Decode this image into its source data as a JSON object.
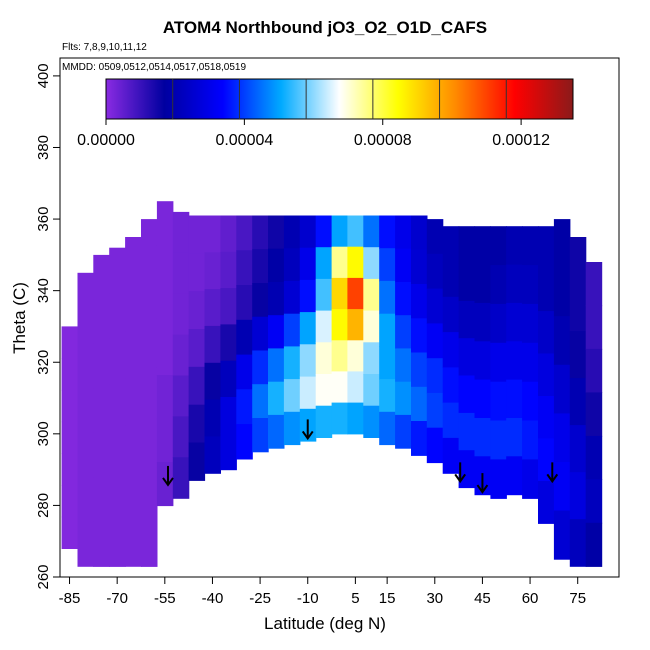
{
  "chart_data": {
    "type": "heatmap",
    "title": "ATOM4 Northbound jO3_O2_O1D_CAFS",
    "flights_note": "Flts: 7,8,9,10,11,12",
    "dates_note": "MMDD: 0509,0512,0514,0517,0518,0519",
    "xlabel": "Latitude (deg N)",
    "ylabel": "Theta (C)",
    "xlim": [
      -88,
      88
    ],
    "ylim": [
      260,
      405
    ],
    "x_ticks": [
      -85,
      -70,
      -55,
      -40,
      -25,
      -10,
      5,
      15,
      30,
      45,
      60,
      75
    ],
    "y_ticks": [
      260,
      280,
      300,
      320,
      340,
      360,
      380,
      400
    ],
    "colorbar": {
      "min": 0,
      "max": 0.000135,
      "tick_values": [
        0,
        4e-05,
        8e-05,
        0.00012
      ],
      "tick_labels": [
        "0.00000",
        "0.00004",
        "0.00008",
        "0.00012"
      ],
      "colors": [
        "#8a2be2",
        "#0000a0",
        "#0000ff",
        "#00aaff",
        "#ffffff",
        "#ffff00",
        "#ff8800",
        "#ff0000",
        "#8b1a1a"
      ]
    },
    "arrow_markers_lat": [
      -54,
      -10,
      38,
      45,
      67
    ],
    "arrow_marker_theta": [
      286,
      299,
      287,
      284,
      287
    ],
    "coverage": {
      "lat": [
        -85,
        -80,
        -75,
        -70,
        -65,
        -60,
        -55,
        -50,
        -45,
        -40,
        -35,
        -30,
        -25,
        -20,
        -15,
        -10,
        -5,
        0,
        5,
        10,
        15,
        20,
        25,
        30,
        35,
        40,
        45,
        50,
        55,
        60,
        65,
        70,
        75,
        80
      ],
      "theta_top": [
        330,
        345,
        350,
        352,
        355,
        360,
        365,
        362,
        361,
        361,
        361,
        361,
        361,
        361,
        361,
        361,
        361,
        361,
        361,
        361,
        361,
        361,
        361,
        360,
        358,
        358,
        358,
        358,
        358,
        358,
        358,
        360,
        355,
        348
      ],
      "theta_bottom": [
        268,
        263,
        263,
        263,
        263,
        263,
        280,
        282,
        287,
        289,
        290,
        293,
        295,
        296,
        297,
        298,
        299,
        300,
        300,
        299,
        297,
        296,
        294,
        292,
        289,
        285,
        283,
        282,
        283,
        282,
        275,
        265,
        263,
        263
      ]
    },
    "j_values": [
      [
        1e-06,
        2e-06,
        2e-06,
        2e-06,
        2e-06,
        2e-06,
        2e-06,
        3e-06,
        3e-06,
        3e-06,
        5e-06,
        8e-06,
        1.2e-05,
        1.5e-05,
        2e-05,
        2.5e-05,
        3.5e-05,
        5e-05,
        5.5e-05,
        4.5e-05,
        3.5e-05,
        3e-05,
        2.5e-05,
        2e-05,
        2e-05,
        1.8e-05,
        1.8e-05,
        1.8e-05,
        2e-05,
        2e-05,
        2e-05,
        1.8e-05,
        1.5e-05,
        1e-05
      ],
      [
        1e-06,
        2e-06,
        2e-06,
        2e-06,
        2e-06,
        2e-06,
        2e-06,
        3e-06,
        3e-06,
        4e-06,
        6e-06,
        1e-05,
        1.4e-05,
        1.8e-05,
        2.2e-05,
        3e-05,
        5e-05,
        7.5e-05,
        8.5e-05,
        6e-05,
        4e-05,
        3.2e-05,
        2.6e-05,
        2.2e-05,
        2e-05,
        1.8e-05,
        1.8e-05,
        2e-05,
        2.2e-05,
        2.2e-05,
        2e-05,
        1.8e-05,
        1.5e-05,
        1e-05
      ],
      [
        1e-06,
        2e-06,
        2e-06,
        2e-06,
        2e-06,
        2e-06,
        2e-06,
        3e-06,
        4e-06,
        6e-06,
        8e-06,
        1.2e-05,
        1.6e-05,
        2e-05,
        2.6e-05,
        3.5e-05,
        5.5e-05,
        9e-05,
        0.00011,
        7.5e-05,
        4.5e-05,
        3.5e-05,
        3e-05,
        2.6e-05,
        2.4e-05,
        2.2e-05,
        2.2e-05,
        2.4e-05,
        2.6e-05,
        2.6e-05,
        2.4e-05,
        2e-05,
        1.6e-05,
        1.2e-05
      ],
      [
        1e-06,
        2e-06,
        2e-06,
        2e-06,
        2e-06,
        2e-06,
        2e-06,
        4e-06,
        6e-06,
        1e-05,
        1.4e-05,
        2e-05,
        2.6e-05,
        3.2e-05,
        4e-05,
        5e-05,
        6.5e-05,
        8.5e-05,
        9.5e-05,
        7e-05,
        5e-05,
        4e-05,
        3.5e-05,
        3.2e-05,
        3e-05,
        2.8e-05,
        2.8e-05,
        3e-05,
        3e-05,
        3e-05,
        2.8e-05,
        2.5e-05,
        2e-05,
        1.5e-05
      ],
      [
        1e-06,
        2e-06,
        2e-06,
        2e-06,
        2e-06,
        2e-06,
        3e-06,
        6e-06,
        1e-05,
        1.6e-05,
        2.2e-05,
        3e-05,
        3.8e-05,
        4.5e-05,
        5.2e-05,
        6e-05,
        7e-05,
        7.5e-05,
        7e-05,
        6e-05,
        5e-05,
        4.5e-05,
        4e-05,
        3.8e-05,
        3.5e-05,
        3.4e-05,
        3.4e-05,
        3.5e-05,
        3.5e-05,
        3.4e-05,
        3.2e-05,
        3e-05,
        2.5e-05,
        2e-05
      ],
      [
        1e-06,
        2e-06,
        2e-06,
        2e-06,
        2e-06,
        2e-06,
        3e-06,
        8e-06,
        1.4e-05,
        2e-05,
        2.8e-05,
        3.6e-05,
        4.5e-05,
        5.2e-05,
        5.8e-05,
        6.4e-05,
        6.8e-05,
        6.8e-05,
        6.4e-05,
        5.8e-05,
        5.2e-05,
        4.8e-05,
        4.4e-05,
        4e-05,
        3.8e-05,
        3.8e-05,
        3.8e-05,
        3.8e-05,
        3.8e-05,
        3.6e-05,
        3.4e-05,
        3.2e-05,
        2.8e-05,
        2.2e-05
      ],
      [
        1e-06,
        2e-06,
        2e-06,
        2e-06,
        2e-06,
        2e-06,
        4e-06,
        1e-05,
        1.6e-05,
        2.2e-05,
        2.8e-05,
        3.4e-05,
        4e-05,
        4.4e-05,
        4.8e-05,
        5e-05,
        5.2e-05,
        5.2e-05,
        5e-05,
        4.8e-05,
        4.4e-05,
        4e-05,
        3.6e-05,
        3.4e-05,
        3.2e-05,
        3.2e-05,
        3.2e-05,
        3.2e-05,
        3.2e-05,
        3e-05,
        2.8e-05,
        2.6e-05,
        2.2e-05,
        1.8e-05
      ]
    ]
  }
}
